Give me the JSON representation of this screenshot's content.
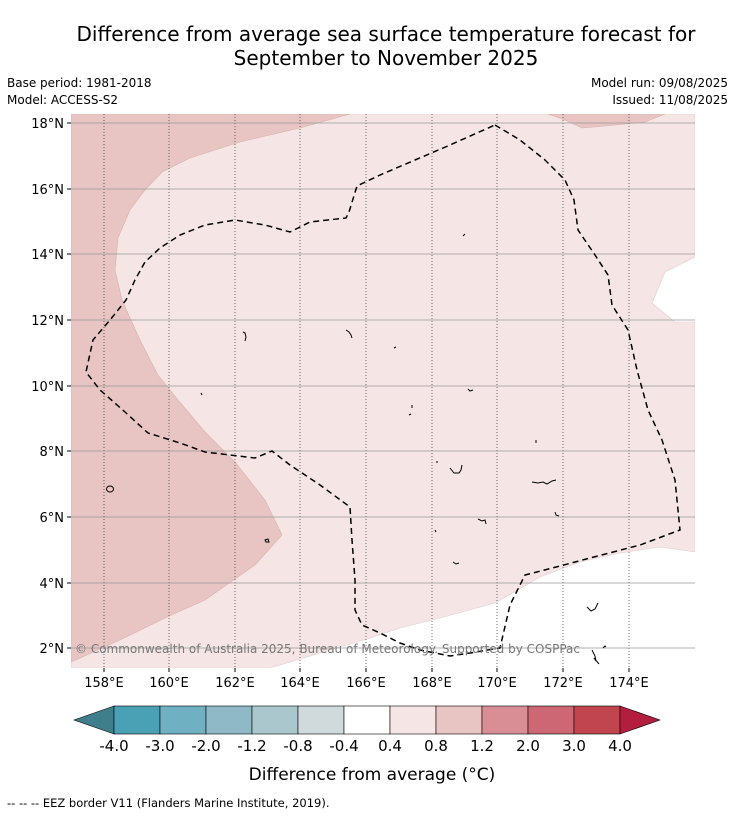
{
  "title_line1": "Difference from average sea surface temperature forecast for",
  "title_line2": "September to November 2025",
  "base_period": "Base period: 1981-2018",
  "model": "Model: ACCESS-S2",
  "model_run": "Model run: 09/08/2025",
  "issued": "Issued: 11/08/2025",
  "copyright": "© Commonwealth of Australia 2025, Bureau of Meteorology. Supported by COSPPac",
  "x_ticks": [
    "158°E",
    "160°E",
    "162°E",
    "164°E",
    "166°E",
    "168°E",
    "170°E",
    "172°E",
    "174°E"
  ],
  "y_ticks": [
    "18°N",
    "16°N",
    "14°N",
    "12°N",
    "10°N",
    "8°N",
    "6°N",
    "4°N",
    "2°N"
  ],
  "colorbar": {
    "label": "Difference from average (°C)",
    "tick_labels": [
      "-4.0",
      "-3.0",
      "-2.0",
      "-1.2",
      "-0.8",
      "-0.4",
      "0.4",
      "0.8",
      "1.2",
      "2.0",
      "3.0",
      "4.0"
    ],
    "colors": [
      "#3f7f8c",
      "#4aa0b5",
      "#6fb0c2",
      "#8fb9c6",
      "#a9c7cc",
      "#d0d9db",
      "#ffffff",
      "#f5e6e5",
      "#e8c5c2",
      "#d98d95",
      "#cc6773",
      "#c0454f",
      "#b31e3f"
    ]
  },
  "footer": "--  --  -- EEZ border V11 (Flanders Marine Institute, 2019)."
}
